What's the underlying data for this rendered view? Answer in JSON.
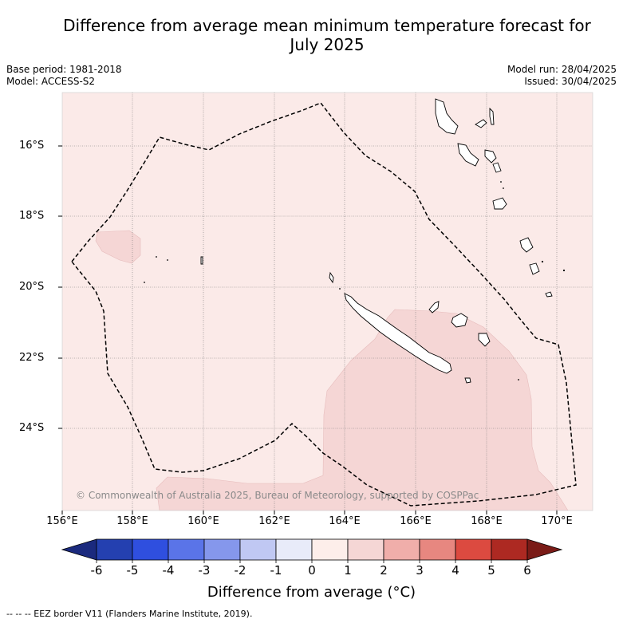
{
  "header": {
    "title_line1": "Difference from average mean minimum temperature forecast for",
    "title_line2": "July 2025",
    "base_period": "Base period: 1981-2018",
    "model": "Model: ACCESS-S2",
    "model_run": "Model run: 28/04/2025",
    "issued": "Issued: 30/04/2025"
  },
  "map": {
    "lat_labels": [
      "16°S",
      "18°S",
      "20°S",
      "22°S",
      "24°S"
    ],
    "lon_labels": [
      "156°E",
      "158°E",
      "160°E",
      "162°E",
      "164°E",
      "166°E",
      "168°E",
      "170°E"
    ],
    "copyright": "© Commonwealth of Australia 2025, Bureau of Meteorology, supported by COSPPac",
    "colors": {
      "background_anomaly_0_1": "#fbeae8",
      "anomaly_1_2": "#f5d6d5",
      "eez_border": "#000000",
      "grid": "#888888"
    }
  },
  "colorbar": {
    "ticks": [
      "-6",
      "-5",
      "-4",
      "-3",
      "-2",
      "-1",
      "0",
      "1",
      "2",
      "3",
      "4",
      "5",
      "6"
    ],
    "colors": [
      "#1b2a7e",
      "#2440b0",
      "#2f4fdf",
      "#5a74e8",
      "#8597ec",
      "#c0c8f3",
      "#e8ebf9",
      "#fdeeea",
      "#f5d6d5",
      "#f0aeaa",
      "#e78780",
      "#dc4a40",
      "#ad2922",
      "#7a1b17"
    ],
    "title": "Difference from average (°C)"
  },
  "footnote": "-- -- -- EEZ border V11 (Flanders Marine Institute, 2019)."
}
